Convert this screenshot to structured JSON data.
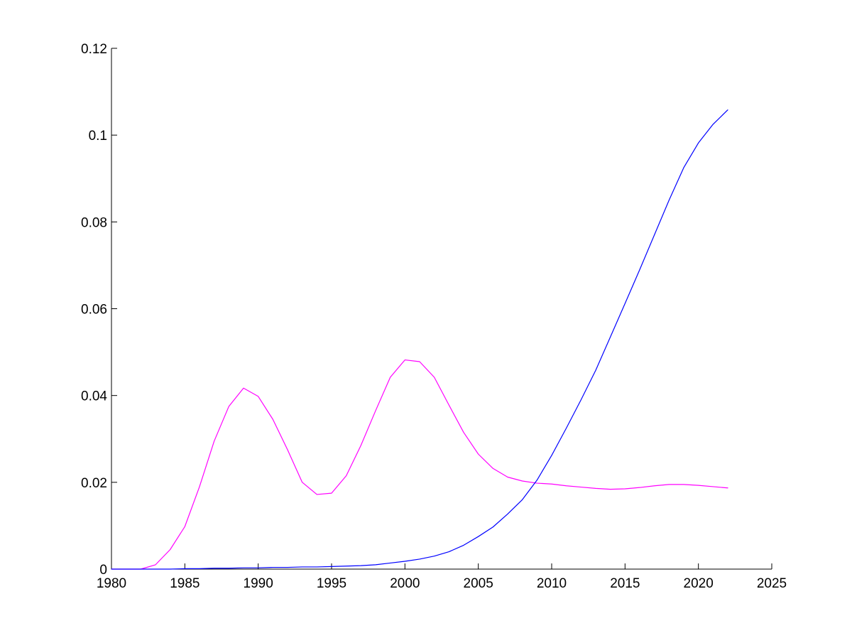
{
  "chart_data": {
    "type": "line",
    "title": "",
    "xlabel": "",
    "ylabel": "",
    "xlim": [
      1980,
      2025
    ],
    "ylim": [
      0,
      0.12
    ],
    "grid": false,
    "legend": "none",
    "x_ticks": [
      "1980",
      "1985",
      "1990",
      "1995",
      "2000",
      "2005",
      "2010",
      "2015",
      "2020",
      "2025"
    ],
    "y_ticks": [
      "0",
      "0.02",
      "0.04",
      "0.06",
      "0.08",
      "0.1",
      "0.12"
    ],
    "x": [
      1980,
      1981,
      1982,
      1983,
      1984,
      1985,
      1986,
      1987,
      1988,
      1989,
      1990,
      1991,
      1992,
      1993,
      1994,
      1995,
      1996,
      1997,
      1998,
      1999,
      2000,
      2001,
      2002,
      2003,
      2004,
      2005,
      2006,
      2007,
      2008,
      2009,
      2010,
      2011,
      2012,
      2013,
      2014,
      2015,
      2016,
      2017,
      2018,
      2019,
      2020,
      2021,
      2022
    ],
    "series": [
      {
        "color": "#ff00ff",
        "values": [
          0,
          0,
          0,
          0.001,
          0.0045,
          0.0098,
          0.019,
          0.0295,
          0.0375,
          0.0417,
          0.0398,
          0.0345,
          0.0275,
          0.02,
          0.0172,
          0.0175,
          0.0215,
          0.0285,
          0.0365,
          0.0442,
          0.0482,
          0.0478,
          0.0442,
          0.0378,
          0.0315,
          0.0265,
          0.0232,
          0.0212,
          0.0203,
          0.0198,
          0.0196,
          0.0192,
          0.0189,
          0.0186,
          0.0184,
          0.0185,
          0.0188,
          0.0192,
          0.0195,
          0.0195,
          0.0193,
          0.019,
          0.0187
        ]
      },
      {
        "color": "#0000ff",
        "values": [
          0,
          0,
          0,
          0,
          0,
          0.0001,
          0.0001,
          0.0002,
          0.0002,
          0.0003,
          0.0003,
          0.0004,
          0.0004,
          0.0005,
          0.0005,
          0.0006,
          0.0007,
          0.0008,
          0.001,
          0.0014,
          0.0018,
          0.0023,
          0.003,
          0.004,
          0.0055,
          0.0075,
          0.0097,
          0.0127,
          0.016,
          0.0205,
          0.0262,
          0.0325,
          0.039,
          0.0458,
          0.0535,
          0.0612,
          0.069,
          0.077,
          0.085,
          0.0925,
          0.0982,
          0.1025,
          0.1058
        ]
      }
    ]
  }
}
